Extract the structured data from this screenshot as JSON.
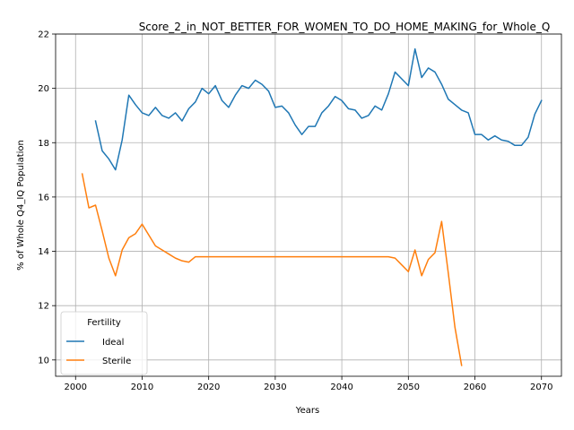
{
  "chart_data": {
    "type": "line",
    "title": "Score_2_in_NOT_BETTER_FOR_WOMEN_TO_DO_HOME_MAKING_for_Whole_Q",
    "xlabel": "Years",
    "ylabel": "% of Whole Q4_IQ Population",
    "xlim": [
      1997,
      2073
    ],
    "ylim": [
      9.4,
      22.0
    ],
    "xticks": [
      2000,
      2010,
      2020,
      2030,
      2040,
      2050,
      2060,
      2070
    ],
    "yticks": [
      10,
      12,
      14,
      16,
      18,
      20,
      22
    ],
    "grid": true,
    "legend": {
      "title": "Fertility",
      "placement": "lower-left"
    },
    "series": [
      {
        "name": "Ideal",
        "color": "#1f77b4",
        "x": [
          2003,
          2004,
          2005,
          2006,
          2007,
          2008,
          2009,
          2010,
          2011,
          2012,
          2013,
          2014,
          2015,
          2016,
          2017,
          2018,
          2019,
          2020,
          2021,
          2022,
          2023,
          2024,
          2025,
          2026,
          2027,
          2028,
          2029,
          2030,
          2031,
          2032,
          2033,
          2034,
          2035,
          2036,
          2037,
          2038,
          2039,
          2040,
          2041,
          2042,
          2043,
          2044,
          2045,
          2046,
          2047,
          2048,
          2049,
          2050,
          2051,
          2052,
          2053,
          2054,
          2055,
          2056,
          2057,
          2058,
          2059,
          2060,
          2061,
          2062,
          2063,
          2064,
          2065,
          2066,
          2067,
          2068,
          2069,
          2070
        ],
        "y": [
          18.8,
          17.7,
          17.4,
          17.0,
          18.1,
          19.75,
          19.4,
          19.1,
          19.0,
          19.3,
          19.0,
          18.9,
          19.1,
          18.8,
          19.25,
          19.5,
          20.0,
          19.8,
          20.1,
          19.55,
          19.3,
          19.75,
          20.1,
          20.0,
          20.3,
          20.15,
          19.9,
          19.3,
          19.35,
          19.1,
          18.65,
          18.3,
          18.6,
          18.6,
          19.1,
          19.35,
          19.7,
          19.55,
          19.25,
          19.2,
          18.9,
          19.0,
          19.35,
          19.2,
          19.8,
          20.6,
          20.35,
          20.1,
          21.45,
          20.4,
          20.75,
          20.6,
          20.15,
          19.6,
          19.4,
          19.2,
          19.1,
          18.3,
          18.3,
          18.1,
          18.25,
          18.1,
          18.05,
          17.9,
          17.9,
          18.2,
          19.05,
          19.55
        ]
      },
      {
        "name": "Sterile",
        "color": "#ff7f0e",
        "x": [
          2001,
          2002,
          2003,
          2004,
          2005,
          2006,
          2007,
          2008,
          2009,
          2010,
          2011,
          2012,
          2013,
          2014,
          2015,
          2016,
          2017,
          2018,
          2019,
          2020,
          2021,
          2022,
          2023,
          2024,
          2025,
          2026,
          2027,
          2028,
          2029,
          2030,
          2031,
          2032,
          2033,
          2034,
          2035,
          2036,
          2037,
          2038,
          2039,
          2040,
          2041,
          2042,
          2043,
          2044,
          2045,
          2046,
          2047,
          2048,
          2049,
          2050,
          2051,
          2052,
          2053,
          2054,
          2055,
          2056,
          2057,
          2058
        ],
        "y": [
          16.85,
          15.6,
          15.7,
          14.75,
          13.75,
          13.1,
          14.05,
          14.5,
          14.65,
          15.0,
          14.6,
          14.2,
          14.05,
          13.9,
          13.75,
          13.65,
          13.6,
          13.8,
          13.8,
          13.8,
          13.8,
          13.8,
          13.8,
          13.8,
          13.8,
          13.8,
          13.8,
          13.8,
          13.8,
          13.8,
          13.8,
          13.8,
          13.8,
          13.8,
          13.8,
          13.8,
          13.8,
          13.8,
          13.8,
          13.8,
          13.8,
          13.8,
          13.8,
          13.8,
          13.8,
          13.8,
          13.8,
          13.75,
          13.5,
          13.25,
          14.05,
          13.1,
          13.7,
          13.95,
          15.1,
          13.2,
          11.2,
          9.8
        ]
      }
    ]
  }
}
